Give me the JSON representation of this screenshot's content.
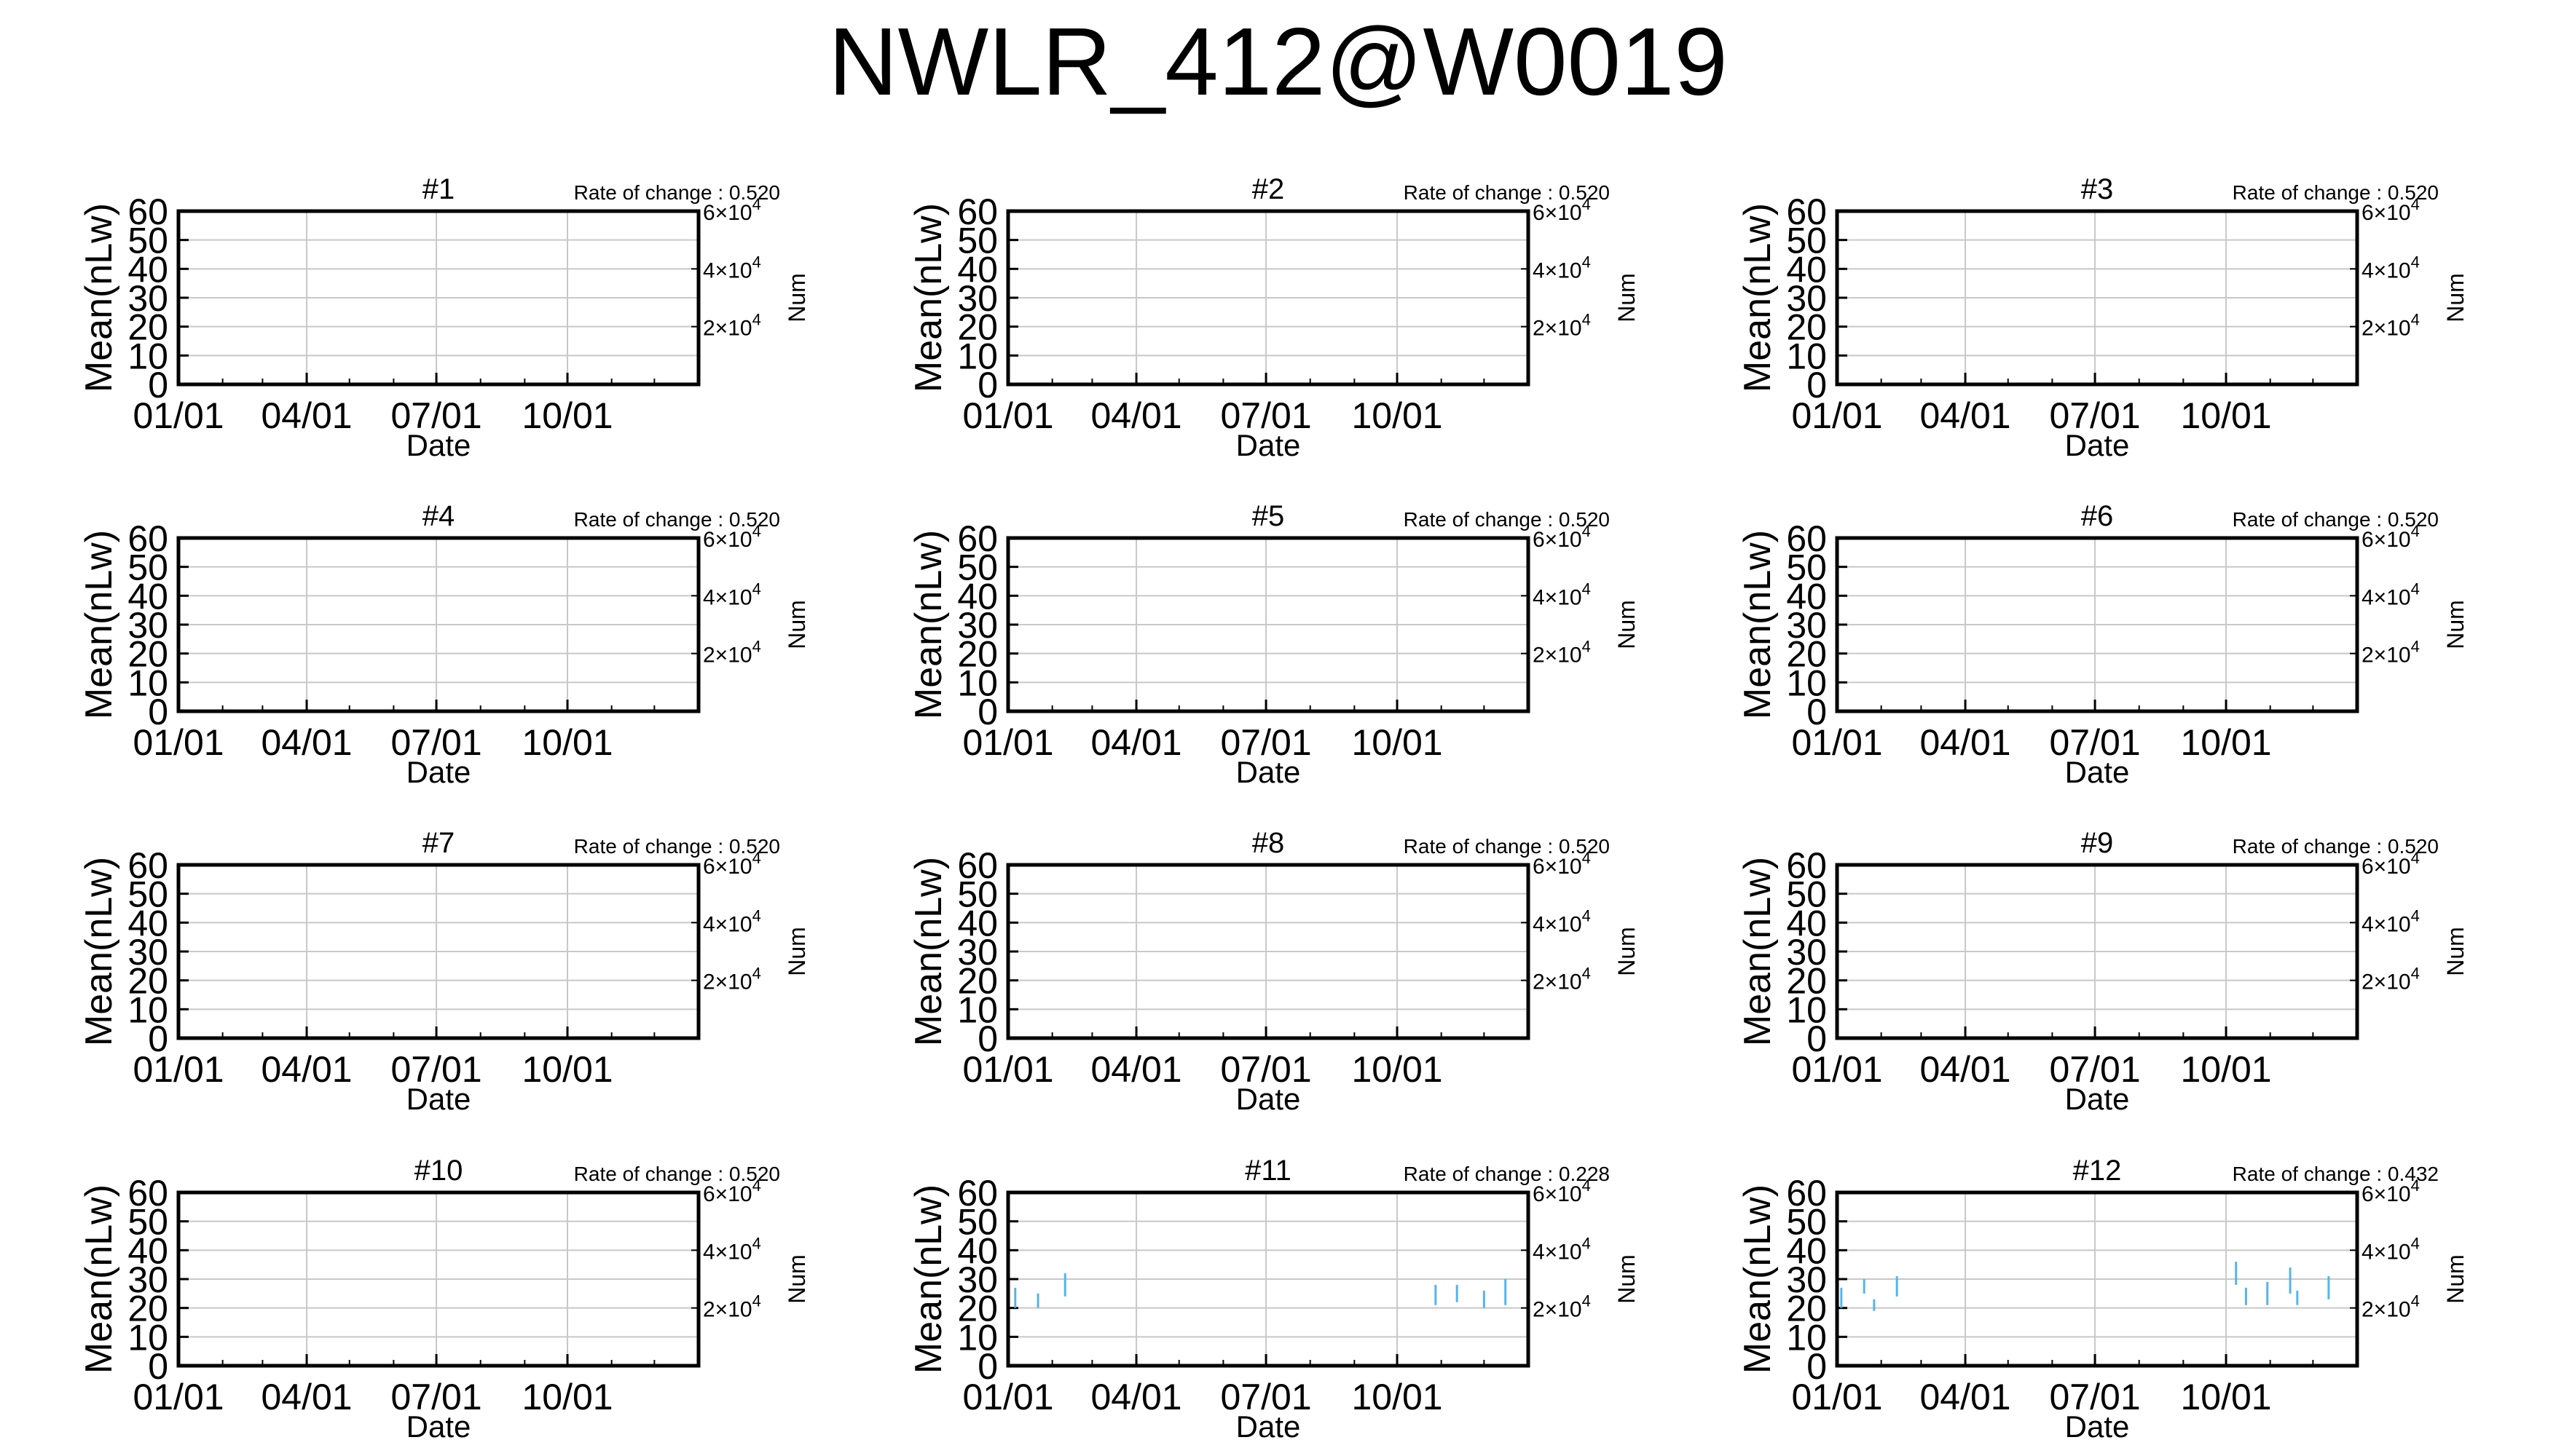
{
  "title": "NWLR_412@W0019",
  "shared": {
    "ylabel": "Mean(nLw)",
    "xlabel": "Date",
    "y2label": "Num",
    "rate_label": "Rate of change : ",
    "y_ticks": [
      "0",
      "10",
      "20",
      "30",
      "40",
      "50",
      "60"
    ],
    "x_ticks": [
      "01/01",
      "04/01",
      "07/01",
      "10/01"
    ],
    "y2_ticks": [
      {
        "base": "2×10",
        "exp": "4"
      },
      {
        "base": "4×10",
        "exp": "4"
      },
      {
        "base": "6×10",
        "exp": "4"
      }
    ]
  },
  "colors": {
    "series": "#56b4e9",
    "grid": "#c8c8c8",
    "axis": "#000000"
  },
  "chart_data": [
    {
      "type": "scatter",
      "title": "#1",
      "rate": "0.520",
      "xlabel": "Date",
      "ylabel": "Mean(nLw)",
      "y2label": "Num",
      "ylim": [
        0,
        60
      ],
      "y2ticks": [
        20000,
        40000,
        60000
      ],
      "x_ticks": [
        "01/01",
        "04/01",
        "07/01",
        "10/01"
      ],
      "grid": true,
      "series": []
    },
    {
      "type": "scatter",
      "title": "#2",
      "rate": "0.520",
      "xlabel": "Date",
      "ylabel": "Mean(nLw)",
      "y2label": "Num",
      "ylim": [
        0,
        60
      ],
      "y2ticks": [
        20000,
        40000,
        60000
      ],
      "x_ticks": [
        "01/01",
        "04/01",
        "07/01",
        "10/01"
      ],
      "grid": true,
      "series": []
    },
    {
      "type": "scatter",
      "title": "#3",
      "rate": "0.520",
      "xlabel": "Date",
      "ylabel": "Mean(nLw)",
      "y2label": "Num",
      "ylim": [
        0,
        60
      ],
      "y2ticks": [
        20000,
        40000,
        60000
      ],
      "x_ticks": [
        "01/01",
        "04/01",
        "07/01",
        "10/01"
      ],
      "grid": true,
      "series": []
    },
    {
      "type": "scatter",
      "title": "#4",
      "rate": "0.520",
      "xlabel": "Date",
      "ylabel": "Mean(nLw)",
      "y2label": "Num",
      "ylim": [
        0,
        60
      ],
      "y2ticks": [
        20000,
        40000,
        60000
      ],
      "x_ticks": [
        "01/01",
        "04/01",
        "07/01",
        "10/01"
      ],
      "grid": true,
      "series": []
    },
    {
      "type": "scatter",
      "title": "#5",
      "rate": "0.520",
      "xlabel": "Date",
      "ylabel": "Mean(nLw)",
      "y2label": "Num",
      "ylim": [
        0,
        60
      ],
      "y2ticks": [
        20000,
        40000,
        60000
      ],
      "x_ticks": [
        "01/01",
        "04/01",
        "07/01",
        "10/01"
      ],
      "grid": true,
      "series": []
    },
    {
      "type": "scatter",
      "title": "#6",
      "rate": "0.520",
      "xlabel": "Date",
      "ylabel": "Mean(nLw)",
      "y2label": "Num",
      "ylim": [
        0,
        60
      ],
      "y2ticks": [
        20000,
        40000,
        60000
      ],
      "x_ticks": [
        "01/01",
        "04/01",
        "07/01",
        "10/01"
      ],
      "grid": true,
      "series": []
    },
    {
      "type": "scatter",
      "title": "#7",
      "rate": "0.520",
      "xlabel": "Date",
      "ylabel": "Mean(nLw)",
      "y2label": "Num",
      "ylim": [
        0,
        60
      ],
      "y2ticks": [
        20000,
        40000,
        60000
      ],
      "x_ticks": [
        "01/01",
        "04/01",
        "07/01",
        "10/01"
      ],
      "grid": true,
      "series": []
    },
    {
      "type": "scatter",
      "title": "#8",
      "rate": "0.520",
      "xlabel": "Date",
      "ylabel": "Mean(nLw)",
      "y2label": "Num",
      "ylim": [
        0,
        60
      ],
      "y2ticks": [
        20000,
        40000,
        60000
      ],
      "x_ticks": [
        "01/01",
        "04/01",
        "07/01",
        "10/01"
      ],
      "grid": true,
      "series": []
    },
    {
      "type": "scatter",
      "title": "#9",
      "rate": "0.520",
      "xlabel": "Date",
      "ylabel": "Mean(nLw)",
      "y2label": "Num",
      "ylim": [
        0,
        60
      ],
      "y2ticks": [
        20000,
        40000,
        60000
      ],
      "x_ticks": [
        "01/01",
        "04/01",
        "07/01",
        "10/01"
      ],
      "grid": true,
      "series": []
    },
    {
      "type": "scatter",
      "title": "#10",
      "rate": "0.520",
      "xlabel": "Date",
      "ylabel": "Mean(nLw)",
      "y2label": "Num",
      "ylim": [
        0,
        60
      ],
      "y2ticks": [
        20000,
        40000,
        60000
      ],
      "x_ticks": [
        "01/01",
        "04/01",
        "07/01",
        "10/01"
      ],
      "grid": true,
      "series": []
    },
    {
      "type": "scatter",
      "title": "#11",
      "rate": "0.228",
      "xlabel": "Date",
      "ylabel": "Mean(nLw)",
      "y2label": "Num",
      "ylim": [
        0,
        60
      ],
      "y2ticks": [
        20000,
        40000,
        60000
      ],
      "x_ticks": [
        "01/01",
        "04/01",
        "07/01",
        "10/01"
      ],
      "grid": true,
      "series": [
        {
          "date": "01-06",
          "lo": 20,
          "hi": 27
        },
        {
          "date": "01-22",
          "lo": 20,
          "hi": 25
        },
        {
          "date": "02-10",
          "lo": 24,
          "hi": 32
        },
        {
          "date": "10-28",
          "lo": 21,
          "hi": 28
        },
        {
          "date": "11-12",
          "lo": 22,
          "hi": 28
        },
        {
          "date": "12-01",
          "lo": 20,
          "hi": 26
        },
        {
          "date": "12-16",
          "lo": 21,
          "hi": 30
        }
      ]
    },
    {
      "type": "scatter",
      "title": "#12",
      "rate": "0.432",
      "xlabel": "Date",
      "ylabel": "Mean(nLw)",
      "y2label": "Num",
      "ylim": [
        0,
        60
      ],
      "y2ticks": [
        20000,
        40000,
        60000
      ],
      "x_ticks": [
        "01/01",
        "04/01",
        "07/01",
        "10/01"
      ],
      "grid": true,
      "series": [
        {
          "date": "01-04",
          "lo": 20,
          "hi": 27
        },
        {
          "date": "01-20",
          "lo": 25,
          "hi": 30
        },
        {
          "date": "01-27",
          "lo": 19,
          "hi": 23
        },
        {
          "date": "02-12",
          "lo": 24,
          "hi": 31
        },
        {
          "date": "10-08",
          "lo": 28,
          "hi": 36
        },
        {
          "date": "10-15",
          "lo": 21,
          "hi": 27
        },
        {
          "date": "10-30",
          "lo": 21,
          "hi": 29
        },
        {
          "date": "11-15",
          "lo": 25,
          "hi": 34
        },
        {
          "date": "11-20",
          "lo": 21,
          "hi": 26
        },
        {
          "date": "12-12",
          "lo": 23,
          "hi": 31
        }
      ]
    }
  ]
}
